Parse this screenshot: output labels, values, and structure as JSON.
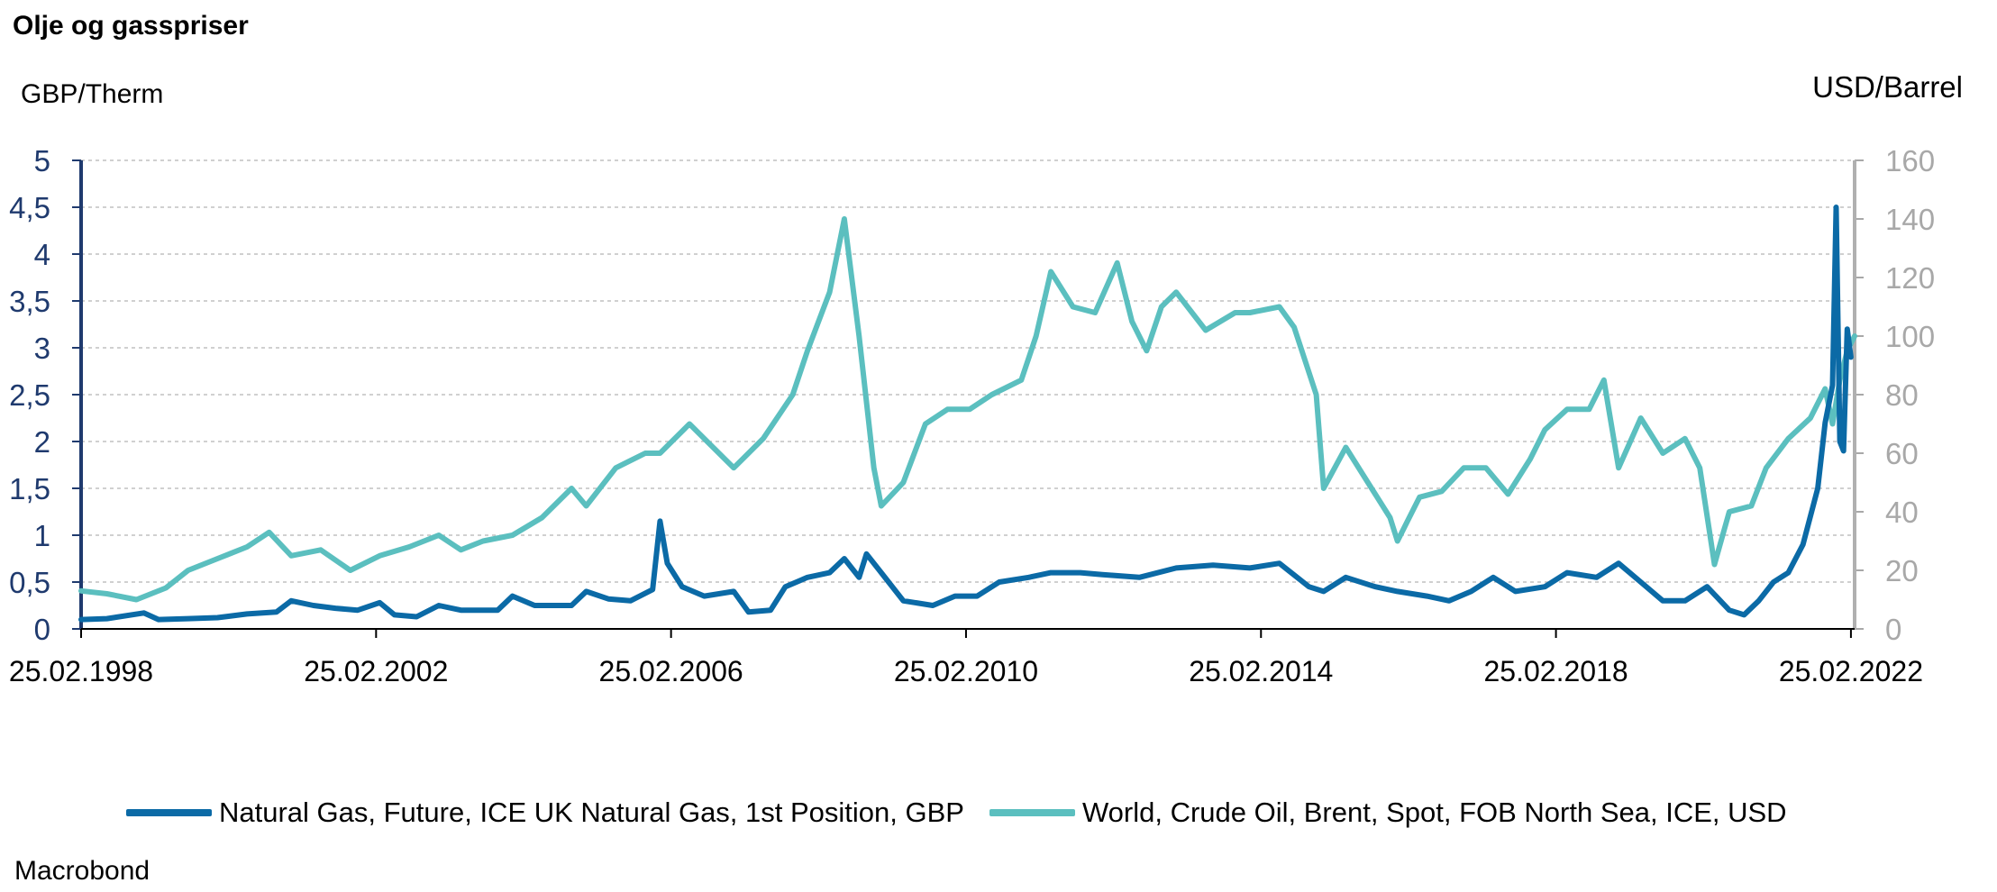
{
  "title": "Olje  og gasspriser",
  "source": "Macrobond",
  "chart_data": {
    "type": "line",
    "title": "Olje  og gasspriser",
    "left_axis": {
      "label": "GBP/Therm",
      "ylim": [
        0,
        5
      ],
      "ticks": [
        "0",
        "0,5",
        "1",
        "1,5",
        "2",
        "2,5",
        "3",
        "3,5",
        "4",
        "4,5",
        "5"
      ],
      "color": "#1f3a6e"
    },
    "right_axis": {
      "label": "USD/Barrel",
      "ylim": [
        0,
        160
      ],
      "ticks": [
        "0",
        "20",
        "40",
        "60",
        "80",
        "100",
        "120",
        "140",
        "160"
      ],
      "color": "#a8a8a8"
    },
    "x_axis": {
      "range": [
        1998.15,
        2022.2
      ],
      "ticks": [
        {
          "x": 1998.15,
          "label": "25.02.1998"
        },
        {
          "x": 2002.15,
          "label": "25.02.2002"
        },
        {
          "x": 2006.15,
          "label": "25.02.2006"
        },
        {
          "x": 2010.15,
          "label": "25.02.2010"
        },
        {
          "x": 2014.15,
          "label": "25.02.2014"
        },
        {
          "x": 2018.15,
          "label": "25.02.2018"
        },
        {
          "x": 2022.15,
          "label": "25.02.2022"
        }
      ]
    },
    "grid": true,
    "legend_position": "bottom",
    "series": [
      {
        "name": "Natural Gas, Future, ICE UK Natural Gas, 1st Position, GBP",
        "axis": "left",
        "color": "#0b6aa6",
        "points": [
          [
            1998.15,
            0.1
          ],
          [
            1998.5,
            0.11
          ],
          [
            1999.0,
            0.17
          ],
          [
            1999.2,
            0.1
          ],
          [
            1999.6,
            0.11
          ],
          [
            2000.0,
            0.12
          ],
          [
            2000.4,
            0.16
          ],
          [
            2000.8,
            0.18
          ],
          [
            2001.0,
            0.3
          ],
          [
            2001.3,
            0.25
          ],
          [
            2001.6,
            0.22
          ],
          [
            2001.9,
            0.2
          ],
          [
            2002.2,
            0.28
          ],
          [
            2002.4,
            0.15
          ],
          [
            2002.7,
            0.13
          ],
          [
            2003.0,
            0.25
          ],
          [
            2003.3,
            0.2
          ],
          [
            2003.8,
            0.2
          ],
          [
            2004.0,
            0.35
          ],
          [
            2004.3,
            0.25
          ],
          [
            2004.8,
            0.25
          ],
          [
            2005.0,
            0.4
          ],
          [
            2005.3,
            0.32
          ],
          [
            2005.6,
            0.3
          ],
          [
            2005.9,
            0.42
          ],
          [
            2006.0,
            1.15
          ],
          [
            2006.1,
            0.7
          ],
          [
            2006.3,
            0.45
          ],
          [
            2006.6,
            0.35
          ],
          [
            2007.0,
            0.4
          ],
          [
            2007.2,
            0.18
          ],
          [
            2007.5,
            0.2
          ],
          [
            2007.7,
            0.45
          ],
          [
            2008.0,
            0.55
          ],
          [
            2008.3,
            0.6
          ],
          [
            2008.5,
            0.75
          ],
          [
            2008.7,
            0.55
          ],
          [
            2008.8,
            0.8
          ],
          [
            2009.0,
            0.6
          ],
          [
            2009.3,
            0.3
          ],
          [
            2009.7,
            0.25
          ],
          [
            2010.0,
            0.35
          ],
          [
            2010.3,
            0.35
          ],
          [
            2010.6,
            0.5
          ],
          [
            2011.0,
            0.55
          ],
          [
            2011.3,
            0.6
          ],
          [
            2011.7,
            0.6
          ],
          [
            2012.0,
            0.58
          ],
          [
            2012.5,
            0.55
          ],
          [
            2013.0,
            0.65
          ],
          [
            2013.5,
            0.68
          ],
          [
            2014.0,
            0.65
          ],
          [
            2014.4,
            0.7
          ],
          [
            2014.8,
            0.45
          ],
          [
            2015.0,
            0.4
          ],
          [
            2015.3,
            0.55
          ],
          [
            2015.7,
            0.45
          ],
          [
            2016.0,
            0.4
          ],
          [
            2016.4,
            0.35
          ],
          [
            2016.7,
            0.3
          ],
          [
            2017.0,
            0.4
          ],
          [
            2017.3,
            0.55
          ],
          [
            2017.6,
            0.4
          ],
          [
            2018.0,
            0.45
          ],
          [
            2018.3,
            0.6
          ],
          [
            2018.7,
            0.55
          ],
          [
            2019.0,
            0.7
          ],
          [
            2019.3,
            0.5
          ],
          [
            2019.6,
            0.3
          ],
          [
            2019.9,
            0.3
          ],
          [
            2020.2,
            0.45
          ],
          [
            2020.5,
            0.2
          ],
          [
            2020.7,
            0.15
          ],
          [
            2020.9,
            0.3
          ],
          [
            2021.1,
            0.5
          ],
          [
            2021.3,
            0.6
          ],
          [
            2021.5,
            0.9
          ],
          [
            2021.7,
            1.5
          ],
          [
            2021.8,
            2.2
          ],
          [
            2021.9,
            2.6
          ],
          [
            2021.95,
            4.5
          ],
          [
            2022.0,
            2.0
          ],
          [
            2022.05,
            1.9
          ],
          [
            2022.1,
            3.2
          ],
          [
            2022.15,
            2.9
          ]
        ]
      },
      {
        "name": "World, Crude Oil, Brent, Spot, FOB North Sea, ICE, USD",
        "axis": "right",
        "color": "#5bbfbf",
        "points": [
          [
            1998.15,
            13
          ],
          [
            1998.5,
            12
          ],
          [
            1998.9,
            10
          ],
          [
            1999.3,
            14
          ],
          [
            1999.6,
            20
          ],
          [
            2000.0,
            24
          ],
          [
            2000.4,
            28
          ],
          [
            2000.7,
            33
          ],
          [
            2001.0,
            25
          ],
          [
            2001.4,
            27
          ],
          [
            2001.8,
            20
          ],
          [
            2002.2,
            25
          ],
          [
            2002.6,
            28
          ],
          [
            2003.0,
            32
          ],
          [
            2003.3,
            27
          ],
          [
            2003.6,
            30
          ],
          [
            2004.0,
            32
          ],
          [
            2004.4,
            38
          ],
          [
            2004.8,
            48
          ],
          [
            2005.0,
            42
          ],
          [
            2005.4,
            55
          ],
          [
            2005.8,
            60
          ],
          [
            2006.0,
            60
          ],
          [
            2006.4,
            70
          ],
          [
            2006.8,
            60
          ],
          [
            2007.0,
            55
          ],
          [
            2007.4,
            65
          ],
          [
            2007.8,
            80
          ],
          [
            2008.0,
            95
          ],
          [
            2008.3,
            115
          ],
          [
            2008.5,
            140
          ],
          [
            2008.7,
            100
          ],
          [
            2008.9,
            55
          ],
          [
            2009.0,
            42
          ],
          [
            2009.3,
            50
          ],
          [
            2009.6,
            70
          ],
          [
            2009.9,
            75
          ],
          [
            2010.2,
            75
          ],
          [
            2010.5,
            80
          ],
          [
            2010.9,
            85
          ],
          [
            2011.1,
            100
          ],
          [
            2011.3,
            122
          ],
          [
            2011.6,
            110
          ],
          [
            2011.9,
            108
          ],
          [
            2012.2,
            125
          ],
          [
            2012.4,
            105
          ],
          [
            2012.6,
            95
          ],
          [
            2012.8,
            110
          ],
          [
            2013.0,
            115
          ],
          [
            2013.4,
            102
          ],
          [
            2013.8,
            108
          ],
          [
            2014.0,
            108
          ],
          [
            2014.4,
            110
          ],
          [
            2014.6,
            103
          ],
          [
            2014.9,
            80
          ],
          [
            2015.0,
            48
          ],
          [
            2015.3,
            62
          ],
          [
            2015.6,
            50
          ],
          [
            2015.9,
            38
          ],
          [
            2016.0,
            30
          ],
          [
            2016.3,
            45
          ],
          [
            2016.6,
            47
          ],
          [
            2016.9,
            55
          ],
          [
            2017.2,
            55
          ],
          [
            2017.5,
            46
          ],
          [
            2017.8,
            58
          ],
          [
            2018.0,
            68
          ],
          [
            2018.3,
            75
          ],
          [
            2018.6,
            75
          ],
          [
            2018.8,
            85
          ],
          [
            2019.0,
            55
          ],
          [
            2019.3,
            72
          ],
          [
            2019.6,
            60
          ],
          [
            2019.9,
            65
          ],
          [
            2020.1,
            55
          ],
          [
            2020.3,
            22
          ],
          [
            2020.5,
            40
          ],
          [
            2020.8,
            42
          ],
          [
            2021.0,
            55
          ],
          [
            2021.3,
            65
          ],
          [
            2021.6,
            72
          ],
          [
            2021.8,
            82
          ],
          [
            2021.9,
            70
          ],
          [
            2022.0,
            85
          ],
          [
            2022.1,
            95
          ],
          [
            2022.2,
            100
          ]
        ]
      }
    ]
  }
}
